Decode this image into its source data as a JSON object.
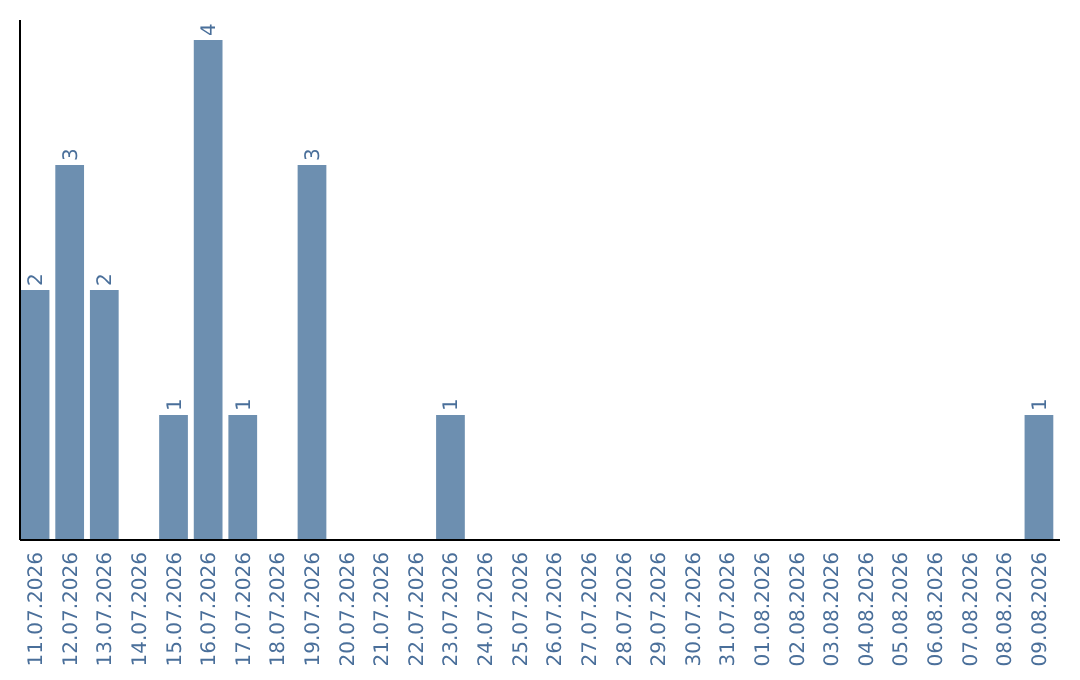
{
  "chart_data": {
    "type": "bar",
    "categories": [
      "11.07.2026",
      "12.07.2026",
      "13.07.2026",
      "14.07.2026",
      "15.07.2026",
      "16.07.2026",
      "17.07.2026",
      "18.07.2026",
      "19.07.2026",
      "20.07.2026",
      "21.07.2026",
      "22.07.2026",
      "23.07.2026",
      "24.07.2026",
      "25.07.2026",
      "26.07.2026",
      "27.07.2026",
      "28.07.2026",
      "29.07.2026",
      "30.07.2026",
      "31.07.2026",
      "01.08.2026",
      "02.08.2026",
      "03.08.2026",
      "04.08.2026",
      "05.08.2026",
      "06.08.2026",
      "07.08.2026",
      "08.08.2026",
      "09.08.2026"
    ],
    "values": [
      2,
      3,
      2,
      0,
      1,
      4,
      1,
      0,
      3,
      0,
      0,
      0,
      1,
      0,
      0,
      0,
      0,
      0,
      0,
      0,
      0,
      0,
      0,
      0,
      0,
      0,
      0,
      0,
      0,
      1
    ],
    "value_labels": [
      "2",
      "3",
      "2",
      null,
      "1",
      "4",
      "1",
      null,
      "3",
      null,
      null,
      null,
      "1",
      null,
      null,
      null,
      null,
      null,
      null,
      null,
      null,
      null,
      null,
      null,
      null,
      null,
      null,
      null,
      null,
      "1"
    ],
    "color": "#6d8fb0"
  }
}
